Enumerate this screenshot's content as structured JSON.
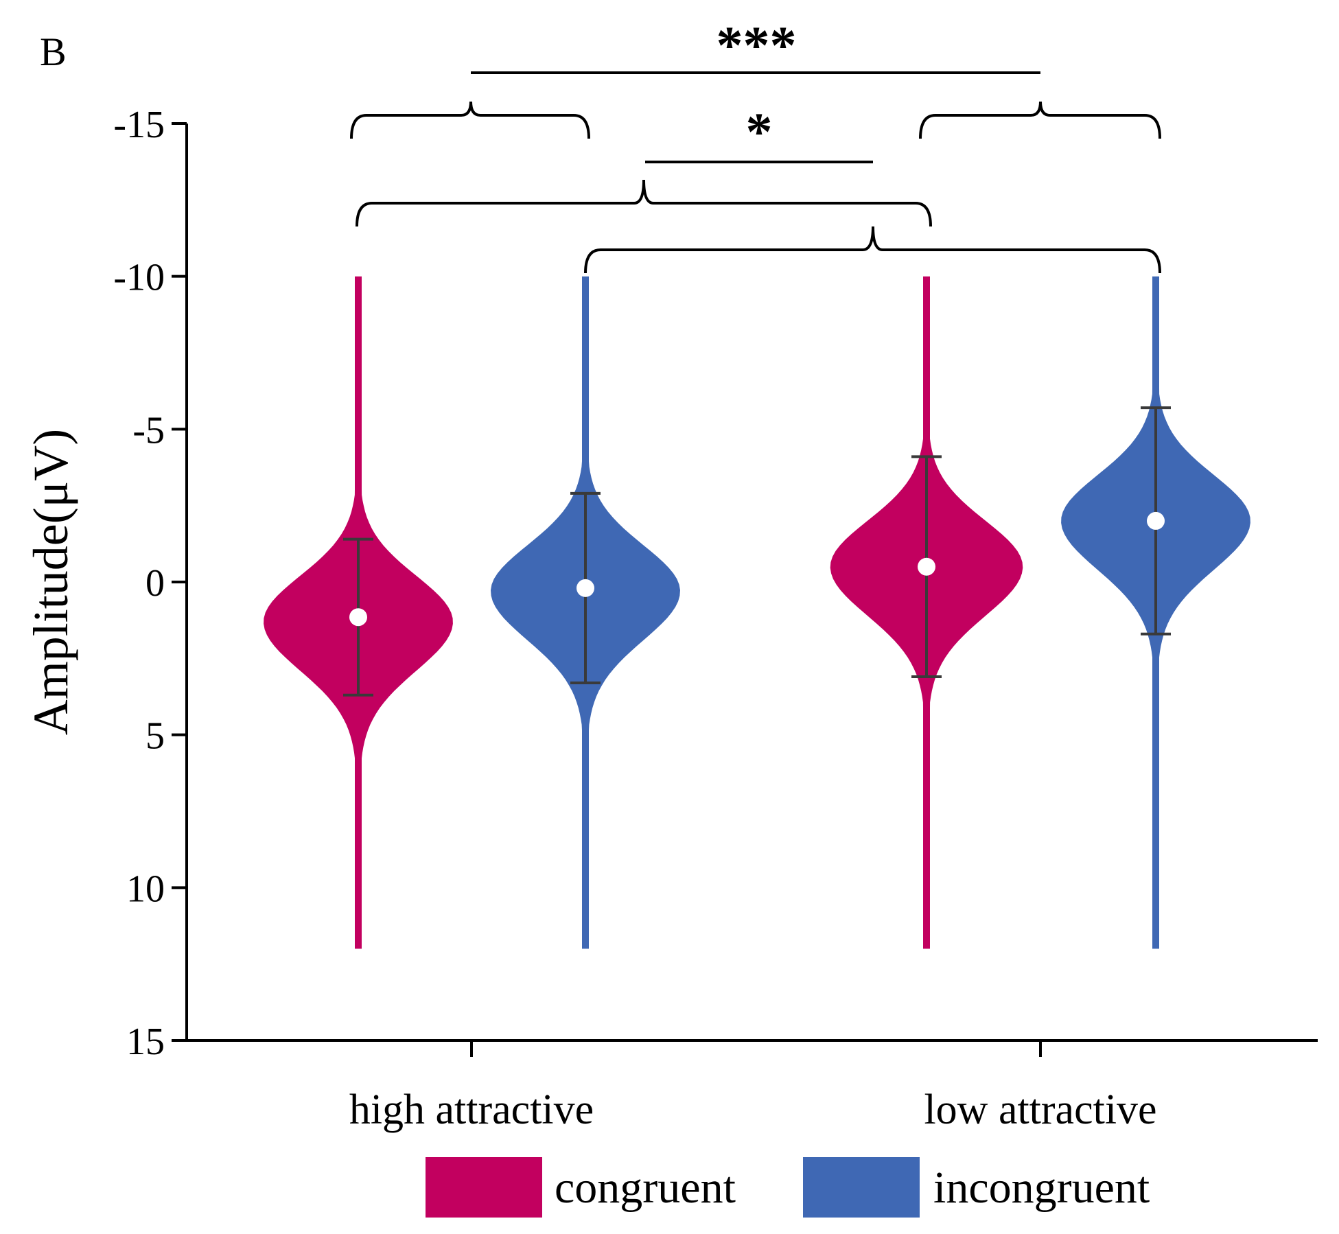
{
  "chart_data": {
    "type": "violin",
    "panel_label": "B",
    "ylabel": "Amplitude(μV)",
    "y_inverted": true,
    "ylim": [
      -15,
      15
    ],
    "yticks": [
      -15,
      -10,
      -5,
      0,
      5,
      10,
      15
    ],
    "ytick_labels": [
      "-15",
      "-10",
      "-5",
      "0",
      "5",
      "10",
      "15"
    ],
    "categories": [
      "high attractive",
      "low attractive"
    ],
    "series": [
      {
        "name": "congruent",
        "color": "#c2005f",
        "groups": [
          {
            "category": "high attractive",
            "mean": 1.15,
            "err_low": -1.4,
            "err_high": 3.7,
            "min": -10,
            "max": 12,
            "peak": 1.3,
            "width": 0.6
          },
          {
            "category": "low attractive",
            "mean": -0.5,
            "err_low": -4.1,
            "err_high": 3.1,
            "min": -10,
            "max": 12,
            "peak": -0.5,
            "width": 0.61
          }
        ]
      },
      {
        "name": "incongruent",
        "color": "#3f68b4",
        "groups": [
          {
            "category": "high attractive",
            "mean": 0.2,
            "err_low": -2.9,
            "err_high": 3.3,
            "min": -10,
            "max": 12,
            "peak": 0.3,
            "width": 0.6
          },
          {
            "category": "low attractive",
            "mean": -2.0,
            "err_low": -5.7,
            "err_high": 1.7,
            "min": -10,
            "max": 12,
            "peak": -2.0,
            "width": 0.6
          }
        ]
      }
    ],
    "legend": {
      "position": "bottom-center",
      "entries": [
        {
          "label": "congruent",
          "color": "#c2005f"
        },
        {
          "label": "incongruent",
          "color": "#3f68b4"
        }
      ]
    },
    "significance": [
      {
        "label": "***",
        "level": -15.6,
        "between": [
          "high attractive",
          "low attractive"
        ]
      },
      {
        "label": "*",
        "level": -13.9,
        "between": [
          "congruent",
          "incongruent"
        ]
      }
    ]
  }
}
